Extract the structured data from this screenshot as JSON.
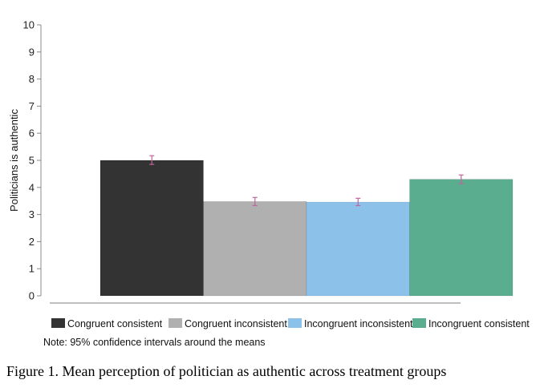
{
  "chart_data": {
    "type": "bar",
    "title": "",
    "ylabel": "Politicians is authentic",
    "xlabel": "",
    "ylim": [
      0,
      10
    ],
    "yticks": [
      0,
      1,
      2,
      3,
      4,
      5,
      6,
      7,
      8,
      9,
      10
    ],
    "categories": [
      "Congruent consistent",
      "Congruent inconsistent",
      "Incongruent inconsistent",
      "Incongruent consistent"
    ],
    "values": [
      5.0,
      3.48,
      3.46,
      4.3
    ],
    "ci_low": [
      4.85,
      3.33,
      3.33,
      4.14
    ],
    "ci_high": [
      5.17,
      3.63,
      3.6,
      4.46
    ],
    "colors": [
      "#333333",
      "#b0b0b0",
      "#8cc1ea",
      "#5aad8e"
    ],
    "errorbar_color": "#c2639a",
    "grid": false,
    "legend_position": "bottom",
    "note": "Note: 95% confidence intervals around the means"
  },
  "caption": "Figure 1. Mean perception of politician as authentic across treatment groups"
}
